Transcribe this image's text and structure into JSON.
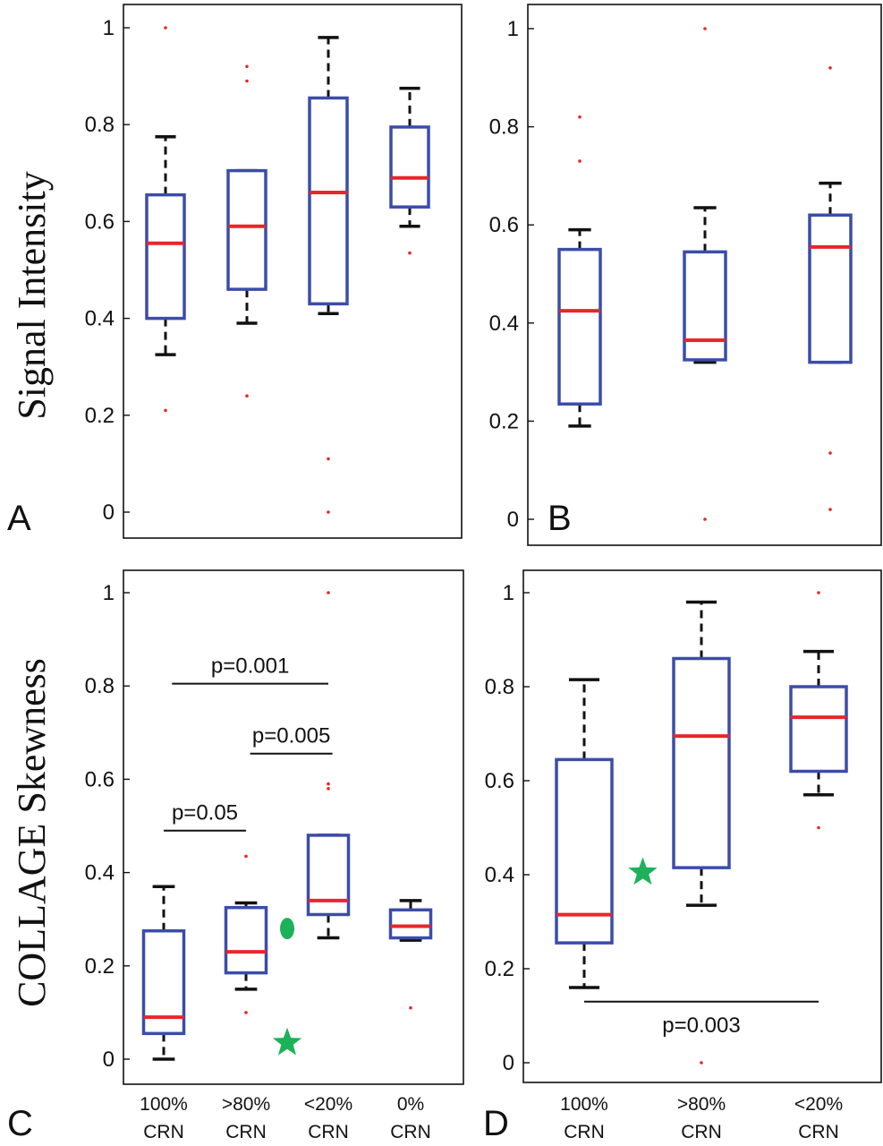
{
  "y_labels": {
    "top": "Signal Intensity",
    "bottom": "COLLAGE Skewness"
  },
  "colors": {
    "box": "#3b4da8",
    "median": "#e8262b",
    "whisker": "#111111",
    "outlier": "#e8262b",
    "marker": "#1db15a"
  },
  "chart_data": [
    {
      "type": "box",
      "panel": "A",
      "ylabel": "Signal Intensity",
      "ylim": [
        0,
        1
      ],
      "yticks": [
        "0",
        "0.2",
        "0.4",
        "0.6",
        "0.8",
        "1"
      ],
      "categories": [],
      "boxes": [
        {
          "whisker_low": 0.325,
          "q1": 0.4,
          "median": 0.555,
          "q3": 0.655,
          "whisker_high": 0.775,
          "outliers": [
            0.21,
            1.0
          ]
        },
        {
          "whisker_low": 0.39,
          "q1": 0.46,
          "median": 0.59,
          "q3": 0.705,
          "whisker_high": 0.705,
          "outliers": [
            0.24,
            0.89,
            0.92
          ]
        },
        {
          "whisker_low": 0.41,
          "q1": 0.43,
          "median": 0.66,
          "q3": 0.855,
          "whisker_high": 0.98,
          "outliers": [
            0.0,
            0.11
          ]
        },
        {
          "whisker_low": 0.59,
          "q1": 0.63,
          "median": 0.69,
          "q3": 0.795,
          "whisker_high": 0.875,
          "outliers": [
            0.535
          ]
        }
      ],
      "annotations": [],
      "markers": []
    },
    {
      "type": "box",
      "panel": "B",
      "ylabel": "",
      "ylim": [
        0,
        1
      ],
      "yticks": [
        "0",
        "0.2",
        "0.4",
        "0.6",
        "0.8",
        "1"
      ],
      "categories": [],
      "boxes": [
        {
          "whisker_low": 0.19,
          "q1": 0.235,
          "median": 0.425,
          "q3": 0.55,
          "whisker_high": 0.59,
          "outliers": [
            0.73,
            0.82
          ]
        },
        {
          "whisker_low": 0.32,
          "q1": 0.325,
          "median": 0.365,
          "q3": 0.545,
          "whisker_high": 0.635,
          "outliers": [
            0.0,
            1.0
          ]
        },
        {
          "whisker_low": 0.32,
          "q1": 0.32,
          "median": 0.555,
          "q3": 0.62,
          "whisker_high": 0.685,
          "outliers": [
            0.02,
            0.135,
            0.92
          ]
        }
      ],
      "annotations": [],
      "markers": []
    },
    {
      "type": "box",
      "panel": "C",
      "ylabel": "COLLAGE Skewness",
      "ylim": [
        0,
        1
      ],
      "yticks": [
        "0",
        "0.2",
        "0.4",
        "0.6",
        "0.8",
        "1"
      ],
      "categories": [
        {
          "pct": "100%",
          "crn": "CRN"
        },
        {
          "pct": ">80%",
          "crn": "CRN"
        },
        {
          "pct": "<20%",
          "crn": "CRN"
        },
        {
          "pct": "0%",
          "crn": "CRN"
        }
      ],
      "boxes": [
        {
          "whisker_low": 0.0,
          "q1": 0.055,
          "median": 0.09,
          "q3": 0.275,
          "whisker_high": 0.37,
          "outliers": []
        },
        {
          "whisker_low": 0.15,
          "q1": 0.185,
          "median": 0.23,
          "q3": 0.325,
          "whisker_high": 0.335,
          "outliers": [
            0.1,
            0.435
          ]
        },
        {
          "whisker_low": 0.26,
          "q1": 0.31,
          "median": 0.34,
          "q3": 0.48,
          "whisker_high": 0.48,
          "outliers": [
            0.58,
            0.59,
            1.0
          ]
        },
        {
          "whisker_low": 0.255,
          "q1": 0.26,
          "median": 0.285,
          "q3": 0.32,
          "whisker_high": 0.34,
          "outliers": [
            0.11
          ]
        }
      ],
      "annotations": [
        {
          "text": "p=0.001",
          "from": 0,
          "to": 2,
          "y": 0.805,
          "x_start": 0.1,
          "x_end": 2.0
        },
        {
          "text": "p=0.005",
          "from": 1,
          "to": 2,
          "y": 0.655,
          "x_start": 1.05,
          "x_end": 2.05
        },
        {
          "text": "p=0.05",
          "from": 0,
          "to": 1,
          "y": 0.49,
          "x_start": 0.0,
          "x_end": 1.0
        }
      ],
      "markers": [
        {
          "shape": "ellipse",
          "x": 1.5,
          "y": 0.28
        },
        {
          "shape": "star",
          "x": 1.5,
          "y": 0.035
        }
      ]
    },
    {
      "type": "box",
      "panel": "D",
      "ylabel": "",
      "ylim": [
        0,
        1
      ],
      "yticks": [
        "0",
        "0.2",
        "0.4",
        "0.6",
        "0.8",
        "1"
      ],
      "categories": [
        {
          "pct": "100%",
          "crn": "CRN"
        },
        {
          "pct": ">80%",
          "crn": "CRN"
        },
        {
          "pct": "<20%",
          "crn": "CRN"
        }
      ],
      "boxes": [
        {
          "whisker_low": 0.16,
          "q1": 0.255,
          "median": 0.315,
          "q3": 0.645,
          "whisker_high": 0.815,
          "outliers": []
        },
        {
          "whisker_low": 0.335,
          "q1": 0.415,
          "median": 0.695,
          "q3": 0.86,
          "whisker_high": 0.98,
          "outliers": [
            0.0
          ]
        },
        {
          "whisker_low": 0.57,
          "q1": 0.62,
          "median": 0.735,
          "q3": 0.8,
          "whisker_high": 0.875,
          "outliers": [
            0.5,
            1.0
          ]
        }
      ],
      "annotations": [
        {
          "text": "p=0.003",
          "from": 0,
          "to": 2,
          "y": 0.13,
          "x_start": 0.0,
          "x_end": 2.0,
          "label_below": true
        }
      ],
      "markers": [
        {
          "shape": "star",
          "x": 0.5,
          "y": 0.405
        }
      ]
    }
  ]
}
